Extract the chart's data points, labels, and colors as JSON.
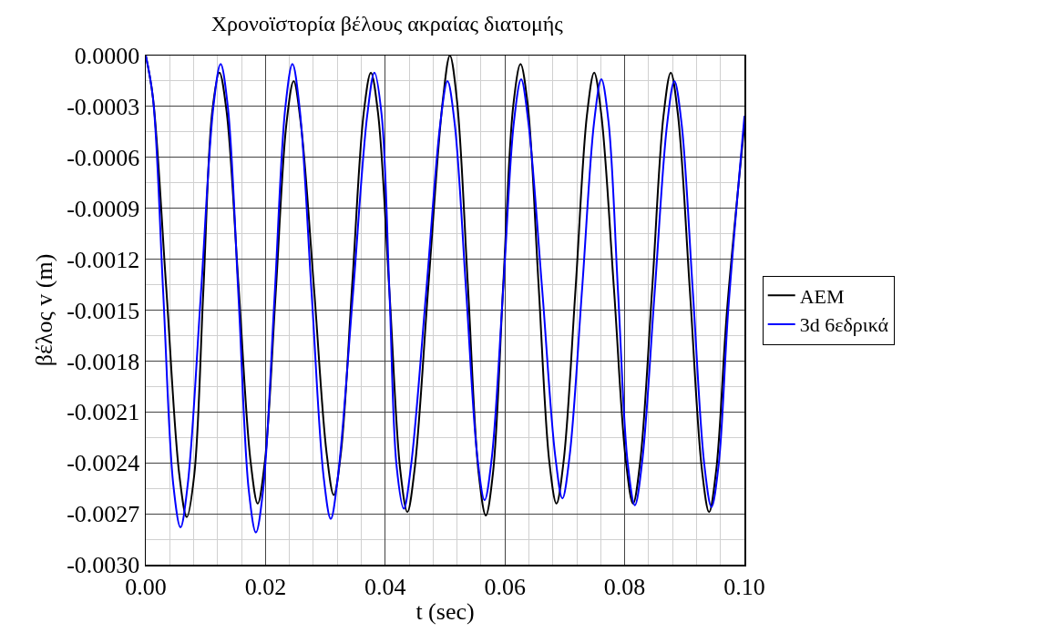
{
  "chart_data": {
    "type": "line",
    "title": "Χρονοϊστορία βέλους ακραίας διατομής",
    "xlabel": "t (sec)",
    "ylabel": "βέλος v (m)",
    "xlim": [
      0,
      0.1
    ],
    "xticks": [
      {
        "value": 0,
        "label": "0.00"
      },
      {
        "value": 0.02,
        "label": "0.02"
      },
      {
        "value": 0.04,
        "label": "0.04"
      },
      {
        "value": 0.06,
        "label": "0.06"
      },
      {
        "value": 0.08,
        "label": "0.08"
      },
      {
        "value": 0.1,
        "label": "0.10"
      }
    ],
    "ylim": [
      -0.003,
      0
    ],
    "yticks": [
      {
        "value": -0.003,
        "label": "-0.0030"
      },
      {
        "value": -0.0027,
        "label": "-0.0027"
      },
      {
        "value": -0.0024,
        "label": "-0.0024"
      },
      {
        "value": -0.0021,
        "label": "-0.0021"
      },
      {
        "value": -0.0018,
        "label": "-0.0018"
      },
      {
        "value": -0.0015,
        "label": "-0.0015"
      },
      {
        "value": -0.0012,
        "label": "-0.0012"
      },
      {
        "value": -0.0009,
        "label": "-0.0009"
      },
      {
        "value": -0.0006,
        "label": "-0.0006"
      },
      {
        "value": -0.0003,
        "label": "-0.0003"
      },
      {
        "value": 0,
        "label": "0.0000"
      }
    ],
    "grid": true,
    "legend": "right",
    "marker": "none",
    "line_style": "solid",
    "series": [
      {
        "name": "AEM",
        "color": "#000000",
        "x": [
          0,
          0.0012,
          0.0034,
          0.0056,
          0.00685,
          0.0081,
          0.0096,
          0.0111,
          0.0123,
          0.0135,
          0.0155,
          0.0175,
          0.0187,
          0.0199,
          0.0217,
          0.0235,
          0.0247,
          0.0259,
          0.0281,
          0.0302,
          0.0314,
          0.0326,
          0.0345,
          0.0364,
          0.0376,
          0.0388,
          0.0407,
          0.0425,
          0.0437,
          0.0449,
          0.0472,
          0.0496,
          0.0508,
          0.052,
          0.0538,
          0.0556,
          0.0568,
          0.058,
          0.0597,
          0.0614,
          0.0626,
          0.0638,
          0.0656,
          0.0674,
          0.0686,
          0.0698,
          0.0718,
          0.0737,
          0.0749,
          0.0761,
          0.0782,
          0.0802,
          0.0814,
          0.0826,
          0.0846,
          0.0865,
          0.0877,
          0.0889,
          0.0909,
          0.0929,
          0.0941,
          0.0953,
          0.0971,
          0.1
        ],
        "values": [
          0,
          -0.00025,
          -0.00136,
          -0.00247,
          -0.00272,
          -0.00247,
          -0.0014,
          -0.00033,
          -0.0001,
          -0.00033,
          -0.00136,
          -0.00239,
          -0.00264,
          -0.00239,
          -0.0014,
          -0.0004,
          -0.00015,
          -0.0004,
          -0.00137,
          -0.00234,
          -0.00259,
          -0.00234,
          -0.00134,
          -0.00034,
          -0.0001,
          -0.00034,
          -0.00139,
          -0.00244,
          -0.00269,
          -0.00244,
          -0.00136,
          -0.00027,
          0,
          -0.00027,
          -0.00135,
          -0.00246,
          -0.00271,
          -0.00246,
          -0.00136,
          -0.00029,
          -5e-05,
          -0.00029,
          -0.00134,
          -0.00239,
          -0.00264,
          -0.00239,
          -0.00137,
          -0.00035,
          -0.0001,
          -0.00035,
          -0.00137,
          -0.00239,
          -0.00264,
          -0.00239,
          -0.00137,
          -0.00035,
          -0.0001,
          -0.00035,
          -0.00139,
          -0.00244,
          -0.00269,
          -0.00244,
          -0.0015,
          -0.00041
        ]
      },
      {
        "name": "3d 6εδρικά",
        "color": "#0000ff",
        "x": [
          0,
          0.0012,
          0.0029,
          0.0046,
          0.0058,
          0.007,
          0.0092,
          0.0113,
          0.0125,
          0.0137,
          0.0155,
          0.0172,
          0.0184,
          0.0196,
          0.0215,
          0.0233,
          0.0245,
          0.0257,
          0.0277,
          0.0297,
          0.0309,
          0.0321,
          0.0346,
          0.037,
          0.0382,
          0.0394,
          0.0407,
          0.0419,
          0.0431,
          0.0443,
          0.0468,
          0.0492,
          0.0504,
          0.0516,
          0.0535,
          0.0554,
          0.0566,
          0.0578,
          0.0597,
          0.0615,
          0.0627,
          0.0639,
          0.0662,
          0.0684,
          0.0696,
          0.0708,
          0.0729,
          0.0749,
          0.0761,
          0.0773,
          0.0789,
          0.0805,
          0.0817,
          0.0829,
          0.085,
          0.0871,
          0.0883,
          0.0895,
          0.0914,
          0.0933,
          0.0945,
          0.0957,
          0.0973,
          0.1
        ],
        "values": [
          0,
          -0.00025,
          -0.00139,
          -0.00253,
          -0.00278,
          -0.00253,
          -0.00141,
          -0.0003,
          -5e-05,
          -0.0003,
          -0.00143,
          -0.00256,
          -0.00281,
          -0.00256,
          -0.00143,
          -0.00031,
          -5e-05,
          -0.00031,
          -0.0014,
          -0.00248,
          -0.00273,
          -0.00248,
          -0.00141,
          -0.00035,
          -0.0001,
          -0.00035,
          -0.00139,
          -0.00242,
          -0.00267,
          -0.00242,
          -0.00141,
          -0.0004,
          -0.00015,
          -0.0004,
          -0.00138,
          -0.00237,
          -0.00262,
          -0.00237,
          -0.00138,
          -0.00039,
          -0.00014,
          -0.00039,
          -0.00137,
          -0.00236,
          -0.00261,
          -0.00236,
          -0.00137,
          -0.00039,
          -0.00014,
          -0.00039,
          -0.0014,
          -0.0024,
          -0.00265,
          -0.0024,
          -0.0014,
          -0.0004,
          -0.00015,
          -0.0004,
          -0.0014,
          -0.00241,
          -0.00266,
          -0.00241,
          -0.0015,
          -0.00036
        ]
      }
    ]
  }
}
